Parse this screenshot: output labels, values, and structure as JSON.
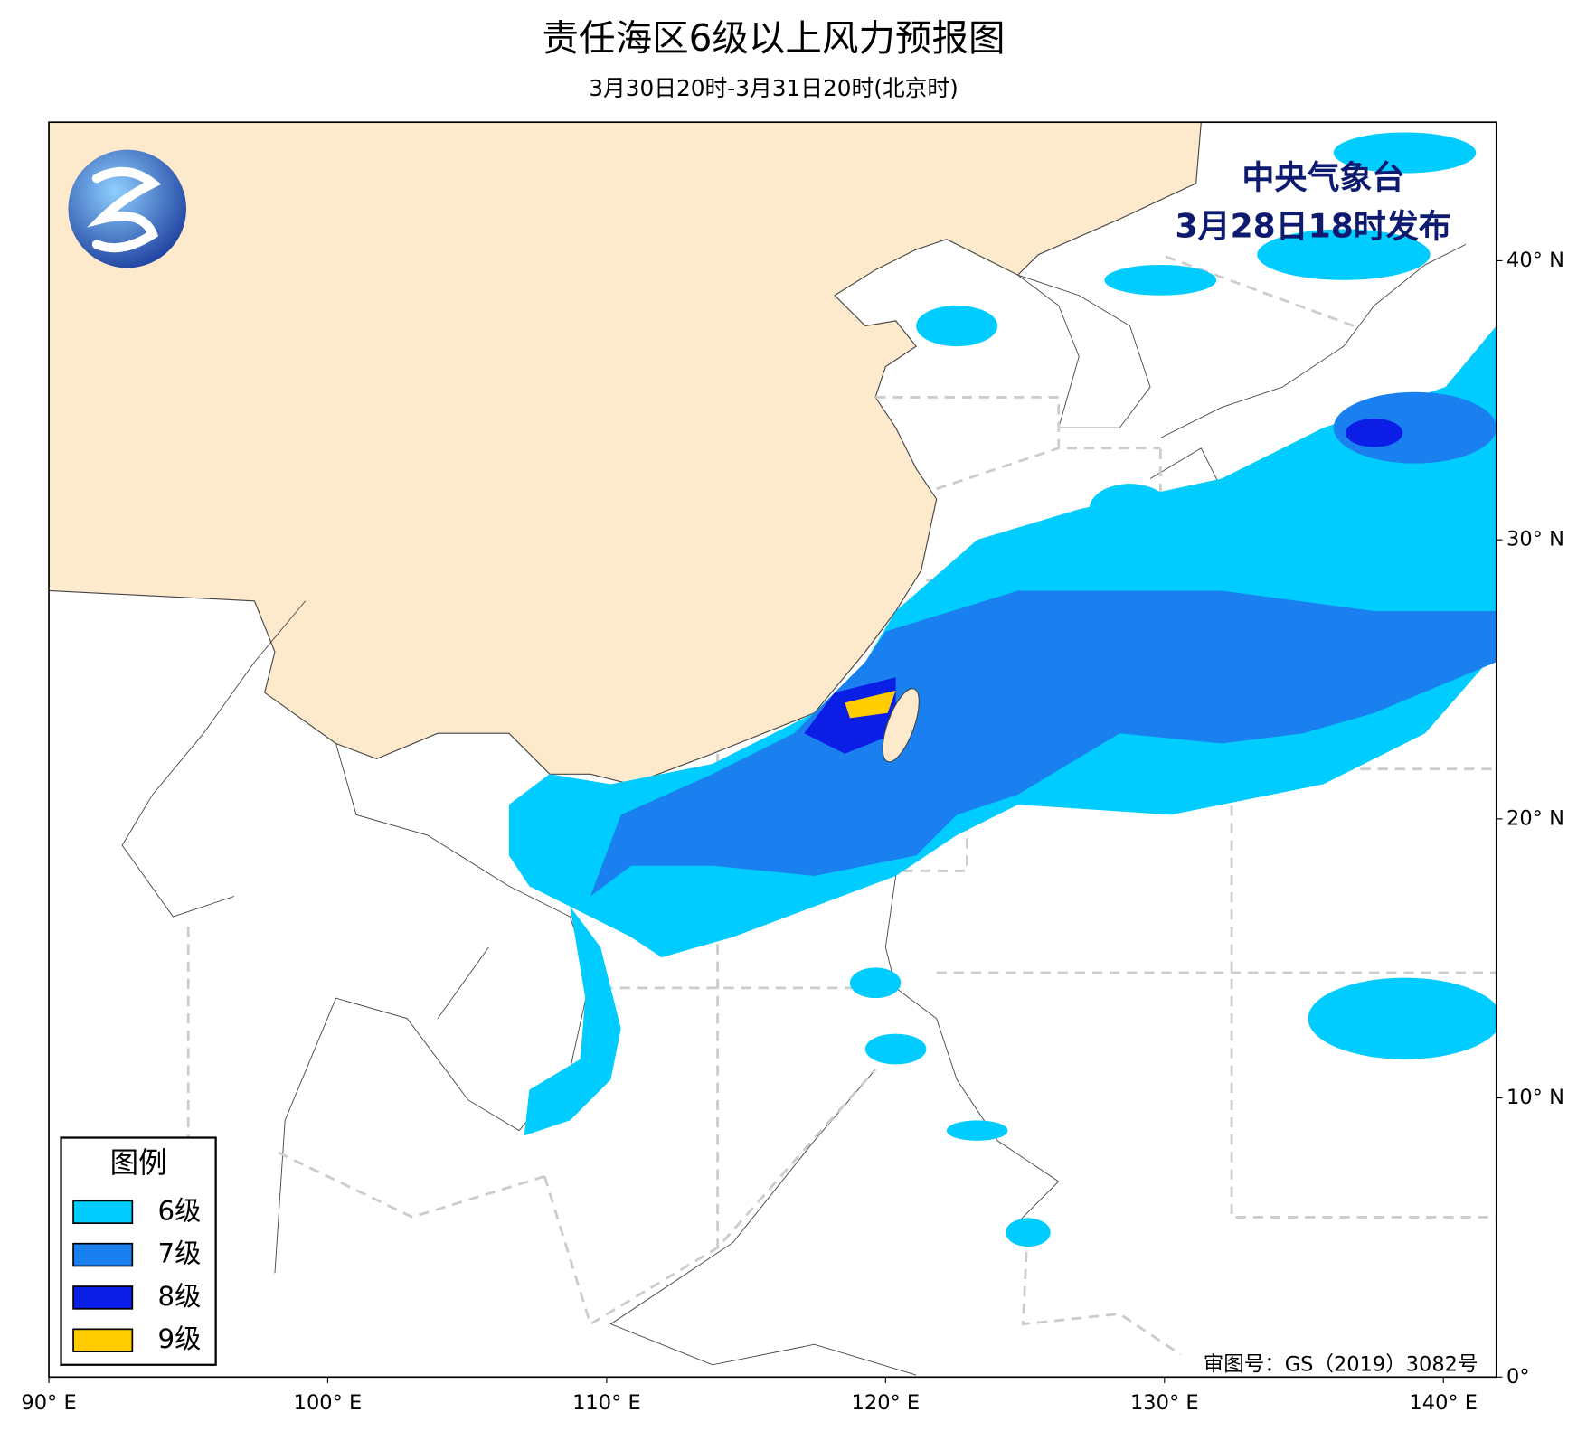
{
  "header": {
    "title": "责任海区6级以上风力预报图",
    "subtitle": "3月30日20时-3月31日20时(北京时)"
  },
  "issuer": {
    "name": "中央气象台",
    "time": "3月28日18时发布"
  },
  "legend": {
    "title": "图例",
    "items": [
      {
        "label": "6级",
        "color": "#00ccff"
      },
      {
        "label": "7级",
        "color": "#1a80f0"
      },
      {
        "label": "8级",
        "color": "#0a1ee6"
      },
      {
        "label": "9级",
        "color": "#ffcc00"
      }
    ]
  },
  "axes": {
    "longitude_labels": [
      "90° E",
      "100° E",
      "110° E",
      "120° E",
      "130° E",
      "140° E"
    ],
    "latitude_labels": [
      "0°",
      "10° N",
      "20° N",
      "30° N",
      "40° N"
    ]
  },
  "approval": "审图号：GS（2019）3082号"
}
